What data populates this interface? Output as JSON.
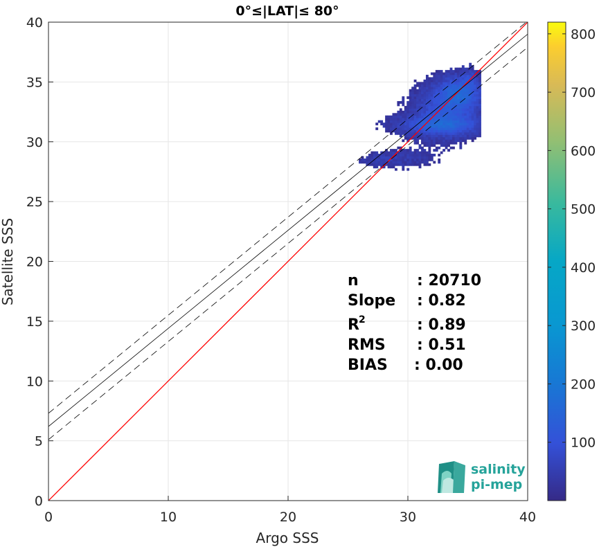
{
  "chart_data": {
    "type": "heatmap",
    "title": "0°≤|LAT|≤ 80°",
    "xlabel": "Argo SSS",
    "ylabel": "Satellite SSS",
    "xlim": [
      0,
      40
    ],
    "ylim": [
      0,
      40
    ],
    "x_ticks": [
      "0",
      "10",
      "20",
      "30",
      "40"
    ],
    "y_ticks": [
      "0",
      "5",
      "10",
      "15",
      "20",
      "25",
      "30",
      "35",
      "40"
    ],
    "grid": true,
    "colorbar": {
      "colormap": "parula",
      "min": 0,
      "max": 820,
      "ticks": [
        "100",
        "200",
        "300",
        "400",
        "500",
        "600",
        "700",
        "800"
      ]
    },
    "lines": {
      "identity": {
        "slope": 1.0,
        "intercept": 0.0,
        "color": "#ff0000"
      },
      "regression": {
        "slope": 0.82,
        "intercept": 6.2,
        "color": "#000000"
      },
      "regression_band": {
        "offset": 1.1,
        "style": "dashed",
        "color": "#000000"
      }
    },
    "density_clusters": [
      {
        "x_center": 32.5,
        "y_center": 31.3,
        "x_spread": 2.4,
        "y_spread": 0.5,
        "weight": 1.0
      },
      {
        "x_center": 34.2,
        "y_center": 34.0,
        "x_spread": 1.2,
        "y_spread": 0.9,
        "weight": 1.3
      },
      {
        "x_center": 33.0,
        "y_center": 32.4,
        "x_spread": 1.8,
        "y_spread": 1.4,
        "weight": 0.9
      },
      {
        "x_center": 27.6,
        "y_center": 28.4,
        "x_spread": 1.2,
        "y_spread": 0.4,
        "weight": 0.3
      },
      {
        "x_center": 30.0,
        "y_center": 28.6,
        "x_spread": 1.6,
        "y_spread": 0.6,
        "weight": 0.25
      },
      {
        "x_center": 35.0,
        "y_center": 35.2,
        "x_spread": 0.4,
        "y_spread": 0.5,
        "weight": 0.6
      }
    ],
    "stats": [
      {
        "label": "n",
        "value": ": 20710"
      },
      {
        "label": "Slope",
        "value": ": 0.82"
      },
      {
        "label": "R",
        "sup": "2",
        "value": ": 0.89"
      },
      {
        "label": "RMS",
        "value": ": 0.51"
      },
      {
        "label": "BIAS",
        "value": ": 0.00"
      }
    ]
  },
  "logo": {
    "line1": "salinity",
    "line2": "pi-mep",
    "color": "#25a39a"
  }
}
